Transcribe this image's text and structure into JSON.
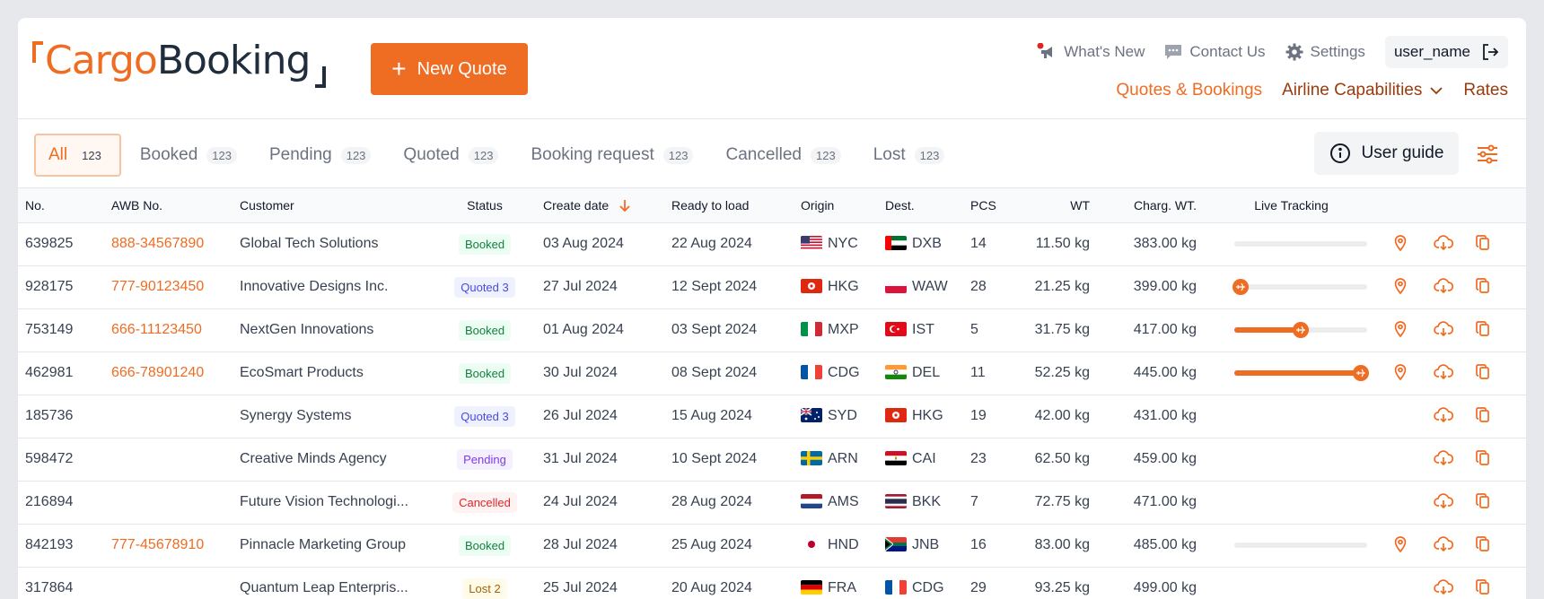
{
  "brand": {
    "part1": "Cargo",
    "part2": "Booking"
  },
  "header": {
    "new_quote": "New Quote",
    "whats_new": "What's New",
    "contact_us": "Contact Us",
    "settings": "Settings",
    "user_name": "user_name",
    "nav": {
      "quotes_bookings": "Quotes & Bookings",
      "airline_capabilities": "Airline Capabilities",
      "rates": "Rates"
    }
  },
  "tabs": [
    {
      "label": "All",
      "count": "123"
    },
    {
      "label": "Booked",
      "count": "123"
    },
    {
      "label": "Pending",
      "count": "123"
    },
    {
      "label": "Quoted",
      "count": "123"
    },
    {
      "label": "Booking request",
      "count": "123"
    },
    {
      "label": "Cancelled",
      "count": "123"
    },
    {
      "label": "Lost",
      "count": "123"
    }
  ],
  "user_guide": "User guide",
  "columns": {
    "no": "No.",
    "awb": "AWB No.",
    "customer": "Customer",
    "status": "Status",
    "create_date": "Create date",
    "ready_to_load": "Ready to load",
    "origin": "Origin",
    "dest": "Dest.",
    "pcs": "PCS",
    "wt": "WT",
    "charg_wt": "Charg. WT.",
    "live_tracking": "Live Tracking"
  },
  "colors": {
    "accent": "#ef6c23",
    "brand_dark": "#1f2d3d",
    "nav_dark": "#9a3b0d"
  },
  "rows": [
    {
      "no": "639825",
      "awb": "888-34567890",
      "customer": "Global Tech Solutions",
      "status": "Booked",
      "create": "03 Aug 2024",
      "ready": "22 Aug 2024",
      "origin": "NYC",
      "origin_flag": "us",
      "dest": "DXB",
      "dest_flag": "ae",
      "pcs": "14",
      "wt": "11.50 kg",
      "cwt": "383.00 kg",
      "progress": 0,
      "tracking": true,
      "pin": true
    },
    {
      "no": "928175",
      "awb": "777-90123450",
      "customer": "Innovative Designs Inc.",
      "status": "Quoted 3",
      "create": "27 Jul 2024",
      "ready": "12 Sept 2024",
      "origin": "HKG",
      "origin_flag": "hk",
      "dest": "WAW",
      "dest_flag": "pl",
      "pcs": "28",
      "wt": "21.25 kg",
      "cwt": "399.00 kg",
      "progress": 0.05,
      "tracking": true,
      "pin": true
    },
    {
      "no": "753149",
      "awb": "666-11123450",
      "customer": "NextGen Innovations",
      "status": "Booked",
      "create": "01 Aug 2024",
      "ready": "03 Sept 2024",
      "origin": "MXP",
      "origin_flag": "it",
      "dest": "IST",
      "dest_flag": "tr",
      "pcs": "5",
      "wt": "31.75 kg",
      "cwt": "417.00 kg",
      "progress": 0.5,
      "tracking": true,
      "pin": true
    },
    {
      "no": "462981",
      "awb": "666-78901240",
      "customer": "EcoSmart Products",
      "status": "Booked",
      "create": "30 Jul 2024",
      "ready": "08 Sept 2024",
      "origin": "CDG",
      "origin_flag": "fr",
      "dest": "DEL",
      "dest_flag": "in",
      "pcs": "11",
      "wt": "52.25 kg",
      "cwt": "445.00 kg",
      "progress": 0.95,
      "tracking": true,
      "pin": true
    },
    {
      "no": "185736",
      "awb": "",
      "customer": "Synergy Systems",
      "status": "Quoted 3",
      "create": "26 Jul 2024",
      "ready": "15 Aug 2024",
      "origin": "SYD",
      "origin_flag": "au",
      "dest": "HKG",
      "dest_flag": "hk",
      "pcs": "19",
      "wt": "42.00 kg",
      "cwt": "431.00 kg",
      "progress": null,
      "tracking": false,
      "pin": false
    },
    {
      "no": "598472",
      "awb": "",
      "customer": "Creative Minds Agency",
      "status": "Pending",
      "create": "31 Jul 2024",
      "ready": "10 Sept 2024",
      "origin": "ARN",
      "origin_flag": "se",
      "dest": "CAI",
      "dest_flag": "eg",
      "pcs": "23",
      "wt": "62.50 kg",
      "cwt": "459.00 kg",
      "progress": null,
      "tracking": false,
      "pin": false
    },
    {
      "no": "216894",
      "awb": "",
      "customer": "Future Vision Technologi...",
      "status": "Cancelled",
      "create": "24 Jul 2024",
      "ready": "28 Aug 2024",
      "origin": "AMS",
      "origin_flag": "nl",
      "dest": "BKK",
      "dest_flag": "th",
      "pcs": "7",
      "wt": "72.75 kg",
      "cwt": "471.00 kg",
      "progress": null,
      "tracking": false,
      "pin": false
    },
    {
      "no": "842193",
      "awb": "777-45678910",
      "customer": "Pinnacle Marketing Group",
      "status": "Booked",
      "create": "28 Jul 2024",
      "ready": "25 Aug 2024",
      "origin": "HND",
      "origin_flag": "jp",
      "dest": "JNB",
      "dest_flag": "za",
      "pcs": "16",
      "wt": "83.00 kg",
      "cwt": "485.00 kg",
      "progress": 0,
      "tracking": true,
      "pin": true
    },
    {
      "no": "317864",
      "awb": "",
      "customer": "Quantum Leap Enterpris...",
      "status": "Lost 2",
      "create": "25 Jul 2024",
      "ready": "20 Aug 2024",
      "origin": "FRA",
      "origin_flag": "de",
      "dest": "CDG",
      "dest_flag": "fr",
      "pcs": "29",
      "wt": "93.25 kg",
      "cwt": "499.00 kg",
      "progress": null,
      "tracking": false,
      "pin": false
    }
  ]
}
